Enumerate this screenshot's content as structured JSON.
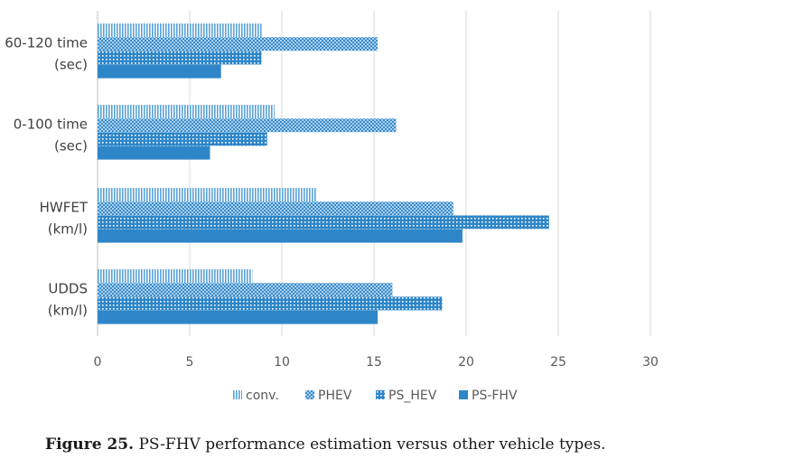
{
  "chart_data": {
    "type": "bar",
    "orientation": "horizontal",
    "categories": [
      [
        "60-120 time",
        "(sec)"
      ],
      [
        "0-100 time",
        "(sec)"
      ],
      [
        "HWFET",
        "(km/l)"
      ],
      [
        "UDDS",
        "(km/l)"
      ]
    ],
    "series": [
      {
        "name": "conv.",
        "values": [
          8.9,
          9.6,
          11.9,
          8.4
        ],
        "pattern": "vertical-stripes"
      },
      {
        "name": "PHEV",
        "values": [
          15.2,
          16.2,
          19.3,
          16.0
        ],
        "pattern": "checker"
      },
      {
        "name": "PS_HEV",
        "values": [
          8.9,
          9.2,
          24.5,
          18.7
        ],
        "pattern": "dots"
      },
      {
        "name": "PS-FHV",
        "values": [
          6.7,
          6.1,
          19.8,
          15.2
        ],
        "pattern": "solid"
      }
    ],
    "xlim": [
      0,
      30
    ],
    "xticks": [
      "0",
      "5",
      "10",
      "15",
      "20",
      "25",
      "30"
    ],
    "grid": true,
    "legend_position": "bottom",
    "accent_color": "#2e86c8"
  },
  "caption": {
    "label": "Figure 25.",
    "text": "PS-FHV performance estimation versus other vehicle types."
  }
}
